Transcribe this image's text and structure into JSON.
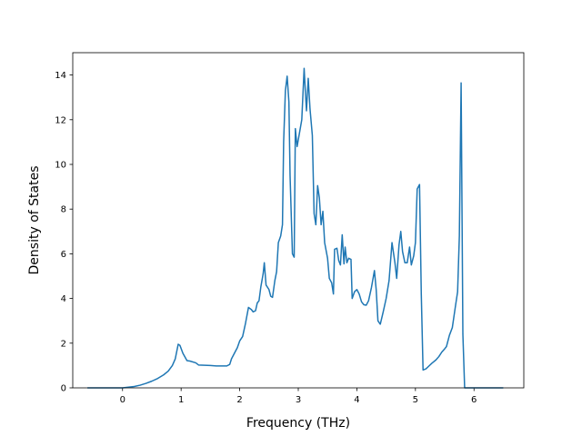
{
  "chart_data": {
    "type": "line",
    "xlabel": "Frequency (THz)",
    "ylabel": "Density of States",
    "xlim": [
      -0.85,
      6.85
    ],
    "ylim": [
      0,
      15
    ],
    "xticks": [
      0,
      1,
      2,
      3,
      4,
      5,
      6
    ],
    "yticks": [
      0,
      2,
      4,
      6,
      8,
      10,
      12,
      14
    ],
    "grid": false,
    "series": [
      {
        "color": "#1f77b4",
        "points": [
          [
            -0.6,
            0.0
          ],
          [
            0.0,
            0.0
          ],
          [
            0.1,
            0.03
          ],
          [
            0.2,
            0.06
          ],
          [
            0.3,
            0.12
          ],
          [
            0.4,
            0.2
          ],
          [
            0.5,
            0.3
          ],
          [
            0.6,
            0.42
          ],
          [
            0.7,
            0.58
          ],
          [
            0.78,
            0.75
          ],
          [
            0.85,
            1.0
          ],
          [
            0.9,
            1.3
          ],
          [
            0.95,
            1.95
          ],
          [
            0.98,
            1.9
          ],
          [
            1.03,
            1.55
          ],
          [
            1.1,
            1.22
          ],
          [
            1.15,
            1.2
          ],
          [
            1.25,
            1.12
          ],
          [
            1.3,
            1.02
          ],
          [
            1.5,
            1.0
          ],
          [
            1.6,
            0.98
          ],
          [
            1.78,
            0.98
          ],
          [
            1.83,
            1.05
          ],
          [
            1.86,
            1.3
          ],
          [
            1.92,
            1.6
          ],
          [
            1.96,
            1.8
          ],
          [
            2.0,
            2.1
          ],
          [
            2.05,
            2.3
          ],
          [
            2.1,
            2.9
          ],
          [
            2.15,
            3.6
          ],
          [
            2.2,
            3.5
          ],
          [
            2.23,
            3.4
          ],
          [
            2.27,
            3.45
          ],
          [
            2.3,
            3.8
          ],
          [
            2.33,
            3.9
          ],
          [
            2.36,
            4.5
          ],
          [
            2.4,
            5.1
          ],
          [
            2.42,
            5.6
          ],
          [
            2.45,
            4.6
          ],
          [
            2.5,
            4.4
          ],
          [
            2.53,
            4.1
          ],
          [
            2.56,
            4.05
          ],
          [
            2.6,
            4.8
          ],
          [
            2.63,
            5.2
          ],
          [
            2.66,
            6.5
          ],
          [
            2.7,
            6.8
          ],
          [
            2.73,
            7.3
          ],
          [
            2.75,
            11.0
          ],
          [
            2.78,
            13.3
          ],
          [
            2.81,
            13.95
          ],
          [
            2.84,
            12.8
          ],
          [
            2.86,
            9.5
          ],
          [
            2.9,
            6.0
          ],
          [
            2.93,
            5.85
          ],
          [
            2.95,
            11.6
          ],
          [
            2.98,
            10.8
          ],
          [
            3.02,
            11.4
          ],
          [
            3.06,
            12.0
          ],
          [
            3.1,
            14.3
          ],
          [
            3.12,
            13.3
          ],
          [
            3.14,
            12.4
          ],
          [
            3.17,
            13.85
          ],
          [
            3.2,
            12.5
          ],
          [
            3.24,
            11.3
          ],
          [
            3.27,
            7.8
          ],
          [
            3.3,
            7.3
          ],
          [
            3.33,
            9.05
          ],
          [
            3.36,
            8.5
          ],
          [
            3.39,
            7.3
          ],
          [
            3.42,
            7.9
          ],
          [
            3.45,
            6.5
          ],
          [
            3.5,
            5.8
          ],
          [
            3.53,
            4.9
          ],
          [
            3.57,
            4.7
          ],
          [
            3.6,
            4.2
          ],
          [
            3.62,
            6.2
          ],
          [
            3.66,
            6.25
          ],
          [
            3.69,
            5.7
          ],
          [
            3.72,
            5.5
          ],
          [
            3.75,
            6.85
          ],
          [
            3.78,
            5.55
          ],
          [
            3.8,
            6.3
          ],
          [
            3.83,
            5.6
          ],
          [
            3.86,
            5.8
          ],
          [
            3.9,
            5.75
          ],
          [
            3.92,
            4.0
          ],
          [
            3.96,
            4.3
          ],
          [
            4.0,
            4.4
          ],
          [
            4.04,
            4.2
          ],
          [
            4.08,
            3.85
          ],
          [
            4.12,
            3.72
          ],
          [
            4.16,
            3.7
          ],
          [
            4.2,
            3.9
          ],
          [
            4.25,
            4.5
          ],
          [
            4.3,
            5.25
          ],
          [
            4.33,
            4.4
          ],
          [
            4.36,
            3.0
          ],
          [
            4.4,
            2.85
          ],
          [
            4.45,
            3.4
          ],
          [
            4.5,
            4.0
          ],
          [
            4.55,
            4.8
          ],
          [
            4.6,
            6.5
          ],
          [
            4.65,
            5.6
          ],
          [
            4.68,
            4.9
          ],
          [
            4.72,
            6.4
          ],
          [
            4.75,
            7.0
          ],
          [
            4.78,
            6.1
          ],
          [
            4.82,
            5.6
          ],
          [
            4.86,
            5.6
          ],
          [
            4.9,
            6.3
          ],
          [
            4.93,
            5.5
          ],
          [
            4.97,
            5.9
          ],
          [
            5.0,
            6.5
          ],
          [
            5.03,
            8.9
          ],
          [
            5.07,
            9.1
          ],
          [
            5.1,
            4.2
          ],
          [
            5.13,
            0.8
          ],
          [
            5.18,
            0.85
          ],
          [
            5.22,
            0.95
          ],
          [
            5.28,
            1.1
          ],
          [
            5.35,
            1.25
          ],
          [
            5.4,
            1.4
          ],
          [
            5.45,
            1.6
          ],
          [
            5.5,
            1.75
          ],
          [
            5.53,
            1.85
          ],
          [
            5.58,
            2.35
          ],
          [
            5.63,
            2.7
          ],
          [
            5.68,
            3.6
          ],
          [
            5.72,
            4.3
          ],
          [
            5.75,
            6.8
          ],
          [
            5.78,
            13.65
          ],
          [
            5.81,
            2.4
          ],
          [
            5.84,
            0.0
          ],
          [
            6.5,
            0.0
          ]
        ]
      }
    ]
  }
}
